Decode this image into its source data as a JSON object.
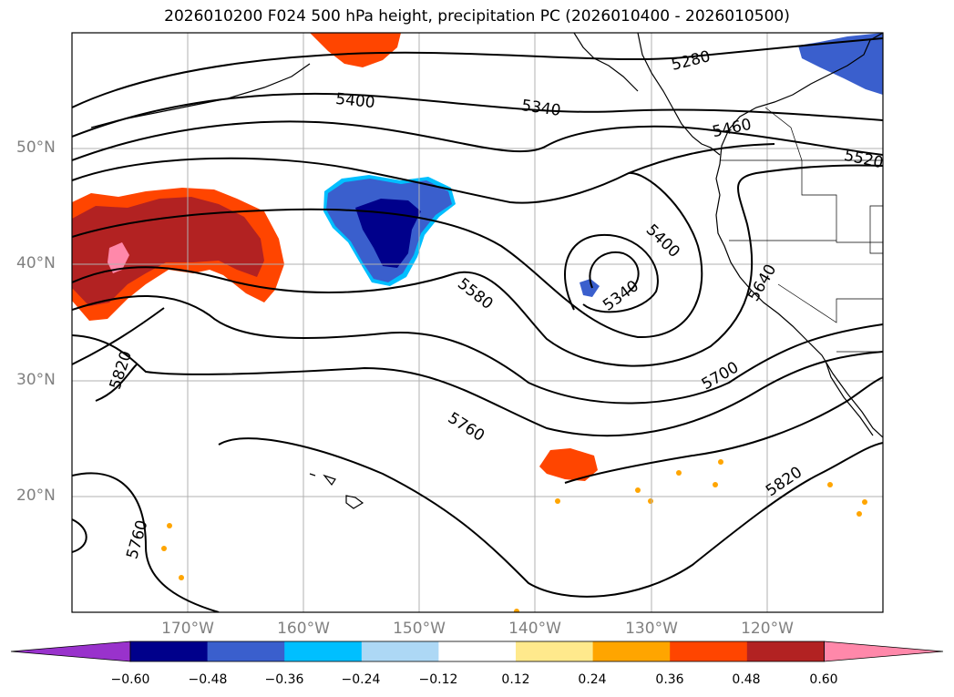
{
  "title": "2026010200 F024 500 hPa height, precipitation PC (2026010400 - 2026010500)",
  "lat_labels": [
    "50°N",
    "40°N",
    "30°N",
    "20°N"
  ],
  "lon_labels": [
    "170°W",
    "160°W",
    "150°W",
    "140°W",
    "130°W",
    "120°W"
  ],
  "contour_labels": [
    "5280",
    "5400",
    "5340",
    "5460",
    "5520",
    "5400",
    "5580",
    "5340",
    "5640",
    "5820",
    "5700",
    "5760",
    "5820",
    "5760"
  ],
  "colorbar": {
    "ticks": [
      "−0.60",
      "−0.48",
      "−0.36",
      "−0.24",
      "−0.12",
      "0.12",
      "0.24",
      "0.36",
      "0.48",
      "0.60"
    ],
    "colors": [
      "#9932CC",
      "#00008B",
      "#3A5FCD",
      "#00BFFF",
      "#ADD8F5",
      "#FFFFFF",
      "#FFE98C",
      "#FFA500",
      "#FF4500",
      "#B22222",
      "#FF88AA"
    ]
  }
}
